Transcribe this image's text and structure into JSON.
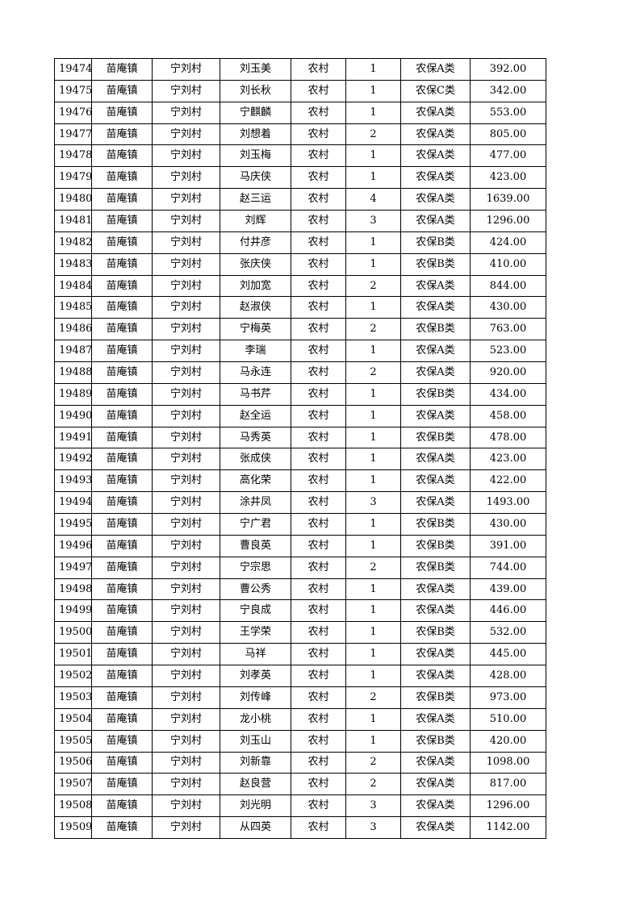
{
  "table": {
    "rows": [
      [
        "19474",
        "苗庵镇",
        "宁刘村",
        "刘玉美",
        "农村",
        "1",
        "农保A类",
        "392.00"
      ],
      [
        "19475",
        "苗庵镇",
        "宁刘村",
        "刘长秋",
        "农村",
        "1",
        "农保C类",
        "342.00"
      ],
      [
        "19476",
        "苗庵镇",
        "宁刘村",
        "宁麒麟",
        "农村",
        "1",
        "农保A类",
        "553.00"
      ],
      [
        "19477",
        "苗庵镇",
        "宁刘村",
        "刘想着",
        "农村",
        "2",
        "农保A类",
        "805.00"
      ],
      [
        "19478",
        "苗庵镇",
        "宁刘村",
        "刘玉梅",
        "农村",
        "1",
        "农保A类",
        "477.00"
      ],
      [
        "19479",
        "苗庵镇",
        "宁刘村",
        "马庆侠",
        "农村",
        "1",
        "农保A类",
        "423.00"
      ],
      [
        "19480",
        "苗庵镇",
        "宁刘村",
        "赵三运",
        "农村",
        "4",
        "农保A类",
        "1639.00"
      ],
      [
        "19481",
        "苗庵镇",
        "宁刘村",
        "刘辉",
        "农村",
        "3",
        "农保A类",
        "1296.00"
      ],
      [
        "19482",
        "苗庵镇",
        "宁刘村",
        "付井彦",
        "农村",
        "1",
        "农保B类",
        "424.00"
      ],
      [
        "19483",
        "苗庵镇",
        "宁刘村",
        "张庆侠",
        "农村",
        "1",
        "农保B类",
        "410.00"
      ],
      [
        "19484",
        "苗庵镇",
        "宁刘村",
        "刘加宽",
        "农村",
        "2",
        "农保A类",
        "844.00"
      ],
      [
        "19485",
        "苗庵镇",
        "宁刘村",
        "赵淑侠",
        "农村",
        "1",
        "农保A类",
        "430.00"
      ],
      [
        "19486",
        "苗庵镇",
        "宁刘村",
        "宁梅英",
        "农村",
        "2",
        "农保B类",
        "763.00"
      ],
      [
        "19487",
        "苗庵镇",
        "宁刘村",
        "李瑞",
        "农村",
        "1",
        "农保A类",
        "523.00"
      ],
      [
        "19488",
        "苗庵镇",
        "宁刘村",
        "马永连",
        "农村",
        "2",
        "农保A类",
        "920.00"
      ],
      [
        "19489",
        "苗庵镇",
        "宁刘村",
        "马书芹",
        "农村",
        "1",
        "农保B类",
        "434.00"
      ],
      [
        "19490",
        "苗庵镇",
        "宁刘村",
        "赵全运",
        "农村",
        "1",
        "农保A类",
        "458.00"
      ],
      [
        "19491",
        "苗庵镇",
        "宁刘村",
        "马秀英",
        "农村",
        "1",
        "农保B类",
        "478.00"
      ],
      [
        "19492",
        "苗庵镇",
        "宁刘村",
        "张成侠",
        "农村",
        "1",
        "农保A类",
        "423.00"
      ],
      [
        "19493",
        "苗庵镇",
        "宁刘村",
        "高化荣",
        "农村",
        "1",
        "农保A类",
        "422.00"
      ],
      [
        "19494",
        "苗庵镇",
        "宁刘村",
        "涂井凤",
        "农村",
        "3",
        "农保A类",
        "1493.00"
      ],
      [
        "19495",
        "苗庵镇",
        "宁刘村",
        "宁广君",
        "农村",
        "1",
        "农保B类",
        "430.00"
      ],
      [
        "19496",
        "苗庵镇",
        "宁刘村",
        "曹良英",
        "农村",
        "1",
        "农保B类",
        "391.00"
      ],
      [
        "19497",
        "苗庵镇",
        "宁刘村",
        "宁宗思",
        "农村",
        "2",
        "农保B类",
        "744.00"
      ],
      [
        "19498",
        "苗庵镇",
        "宁刘村",
        "曹公秀",
        "农村",
        "1",
        "农保A类",
        "439.00"
      ],
      [
        "19499",
        "苗庵镇",
        "宁刘村",
        "宁良成",
        "农村",
        "1",
        "农保A类",
        "446.00"
      ],
      [
        "19500",
        "苗庵镇",
        "宁刘村",
        "王学荣",
        "农村",
        "1",
        "农保B类",
        "532.00"
      ],
      [
        "19501",
        "苗庵镇",
        "宁刘村",
        "马祥",
        "农村",
        "1",
        "农保A类",
        "445.00"
      ],
      [
        "19502",
        "苗庵镇",
        "宁刘村",
        "刘孝英",
        "农村",
        "1",
        "农保A类",
        "428.00"
      ],
      [
        "19503",
        "苗庵镇",
        "宁刘村",
        "刘传峰",
        "农村",
        "2",
        "农保B类",
        "973.00"
      ],
      [
        "19504",
        "苗庵镇",
        "宁刘村",
        "龙小桃",
        "农村",
        "1",
        "农保A类",
        "510.00"
      ],
      [
        "19505",
        "苗庵镇",
        "宁刘村",
        "刘玉山",
        "农村",
        "1",
        "农保B类",
        "420.00"
      ],
      [
        "19506",
        "苗庵镇",
        "宁刘村",
        "刘新靠",
        "农村",
        "2",
        "农保A类",
        "1098.00"
      ],
      [
        "19507",
        "苗庵镇",
        "宁刘村",
        "赵良营",
        "农村",
        "2",
        "农保A类",
        "817.00"
      ],
      [
        "19508",
        "苗庵镇",
        "宁刘村",
        "刘光明",
        "农村",
        "3",
        "农保A类",
        "1296.00"
      ],
      [
        "19509",
        "苗庵镇",
        "宁刘村",
        "从四英",
        "农村",
        "3",
        "农保A类",
        "1142.00"
      ]
    ]
  }
}
